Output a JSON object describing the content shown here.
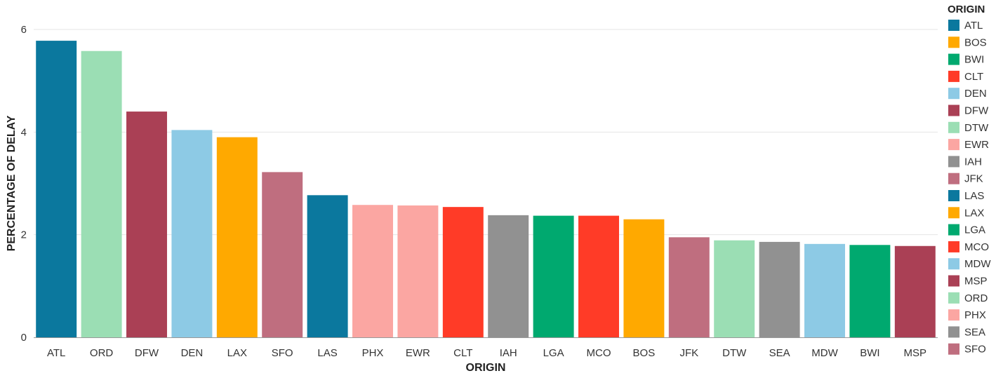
{
  "chart_data": {
    "type": "bar",
    "categories": [
      "ATL",
      "ORD",
      "DFW",
      "DEN",
      "LAX",
      "SFO",
      "LAS",
      "PHX",
      "EWR",
      "CLT",
      "IAH",
      "LGA",
      "MCO",
      "BOS",
      "JFK",
      "DTW",
      "SEA",
      "MDW",
      "BWI",
      "MSP"
    ],
    "values": [
      5.78,
      5.58,
      4.4,
      4.04,
      3.9,
      3.22,
      2.77,
      2.58,
      2.57,
      2.54,
      2.38,
      2.37,
      2.37,
      2.3,
      1.95,
      1.89,
      1.86,
      1.82,
      1.8,
      1.78
    ],
    "xlabel": "ORIGIN",
    "ylabel": "PERCENTAGE OF DELAY",
    "ylim": [
      0,
      6
    ],
    "yticks": [
      "0",
      "2",
      "4",
      "6"
    ],
    "grid": true,
    "legend": {
      "title": "ORIGIN",
      "placement": "right",
      "items": [
        {
          "label": "ATL",
          "color": "#0B789E"
        },
        {
          "label": "BOS",
          "color": "#FFA900"
        },
        {
          "label": "BWI",
          "color": "#00A96F"
        },
        {
          "label": "CLT",
          "color": "#FF3B27"
        },
        {
          "label": "DEN",
          "color": "#8DCAE5"
        },
        {
          "label": "DFW",
          "color": "#AA4055"
        },
        {
          "label": "DTW",
          "color": "#9BDEB4"
        },
        {
          "label": "EWR",
          "color": "#FBA6A2"
        },
        {
          "label": "IAH",
          "color": "#919191"
        },
        {
          "label": "JFK",
          "color": "#BF6E7F"
        },
        {
          "label": "LAS",
          "color": "#0B789E"
        },
        {
          "label": "LAX",
          "color": "#FFA900"
        },
        {
          "label": "LGA",
          "color": "#00A96F"
        },
        {
          "label": "MCO",
          "color": "#FF3B27"
        },
        {
          "label": "MDW",
          "color": "#8DCAE5"
        },
        {
          "label": "MSP",
          "color": "#AA4055"
        },
        {
          "label": "ORD",
          "color": "#9BDEB4"
        },
        {
          "label": "PHX",
          "color": "#FBA6A2"
        },
        {
          "label": "SEA",
          "color": "#919191"
        },
        {
          "label": "SFO",
          "color": "#BF6E7F"
        }
      ]
    }
  }
}
